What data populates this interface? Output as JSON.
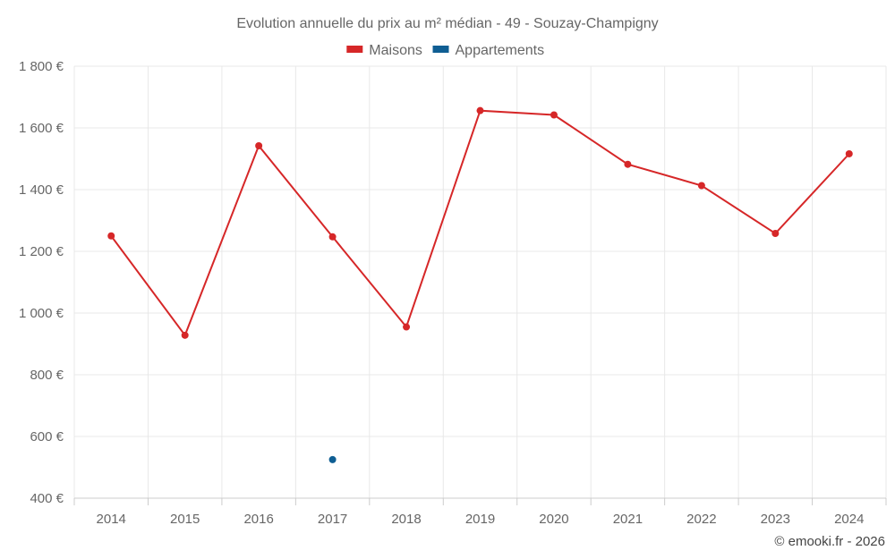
{
  "chart_data": {
    "type": "line",
    "title": "Evolution annuelle du prix au m² médian - 49 - Souzay-Champigny",
    "categories": [
      "2014",
      "2015",
      "2016",
      "2017",
      "2018",
      "2019",
      "2020",
      "2021",
      "2022",
      "2023",
      "2024"
    ],
    "series": [
      {
        "name": "Maisons",
        "color": "#d62728",
        "values": [
          1250,
          928,
          1542,
          1247,
          955,
          1656,
          1642,
          1482,
          1413,
          1258,
          1516
        ]
      },
      {
        "name": "Appartements",
        "color": "#0f5e93",
        "values": [
          null,
          null,
          null,
          525,
          null,
          null,
          null,
          null,
          null,
          null,
          null
        ]
      }
    ],
    "ylim": [
      400,
      1800
    ],
    "yticks": [
      400,
      600,
      800,
      1000,
      1200,
      1400,
      1600,
      1800
    ],
    "ytick_labels": [
      "400 €",
      "600 €",
      "800 €",
      "1 000 €",
      "1 200 €",
      "1 400 €",
      "1 600 €",
      "1 800 €"
    ],
    "xlabel": "",
    "ylabel": "",
    "grid": true,
    "legend_position": "top-center"
  },
  "footer": {
    "credit": "© emooki.fr - 2026"
  }
}
